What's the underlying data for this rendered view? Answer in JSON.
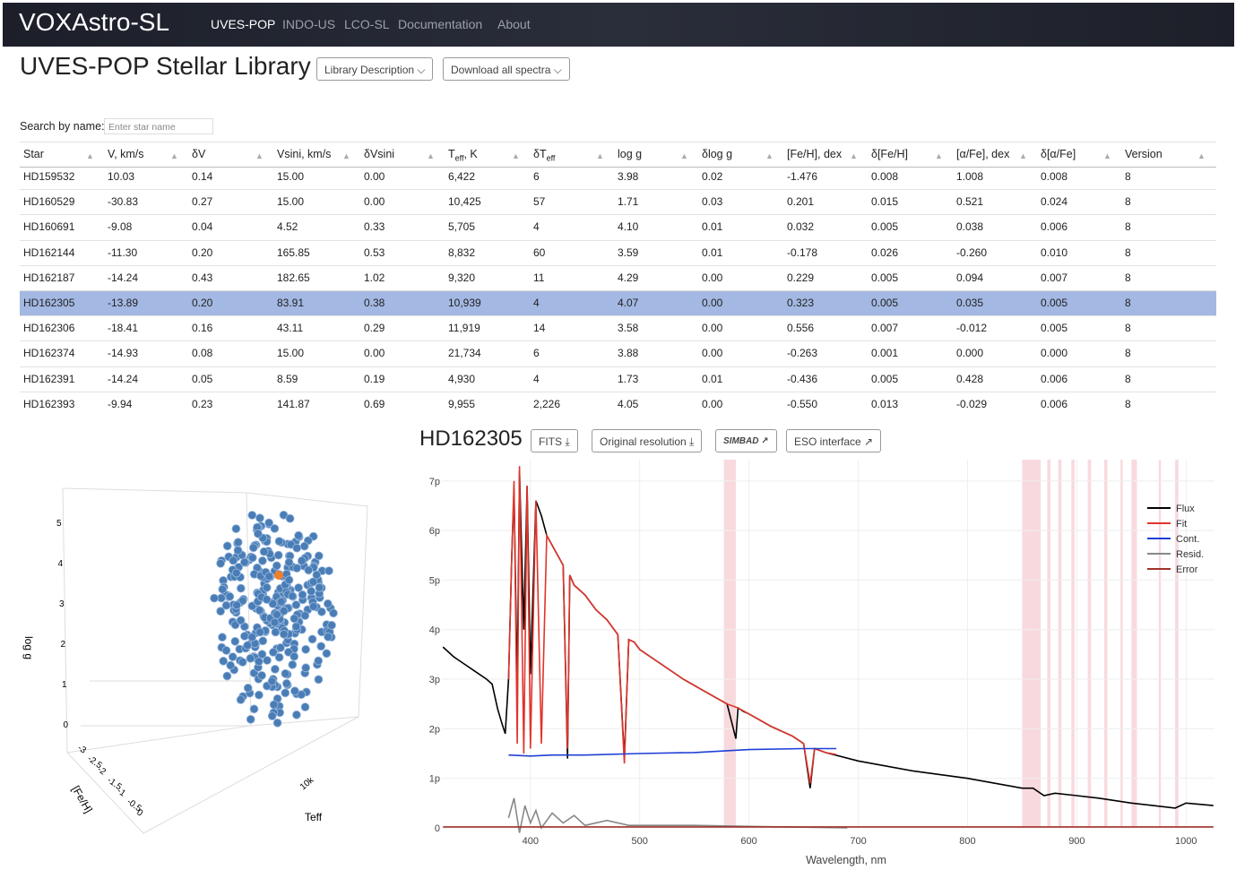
{
  "navbar": {
    "brand": "VOXAstro-SL",
    "links": [
      "UVES-POP",
      "INDO-US",
      "LCO-SL",
      "Documentation",
      "About"
    ]
  },
  "header": {
    "title": "UVES-POP Stellar Library",
    "buttons": [
      "Library Description",
      "Download all spectra"
    ]
  },
  "search": {
    "label": "Search by name:",
    "placeholder": "Enter star name"
  },
  "table": {
    "columns": [
      {
        "text": "Star"
      },
      {
        "text": "V, km/s"
      },
      {
        "text": "δV"
      },
      {
        "text": "Vsini, km/s"
      },
      {
        "text": "δVsini"
      },
      {
        "text": "T",
        "sub": "eff",
        "after": ", K"
      },
      {
        "text": "δT",
        "sub": "eff"
      },
      {
        "text": "log g"
      },
      {
        "text": "δlog g"
      },
      {
        "text": "[Fe/H], dex"
      },
      {
        "text": "δ[Fe/H]"
      },
      {
        "text": "[α/Fe], dex"
      },
      {
        "text": "δ[α/Fe]"
      },
      {
        "text": "Version"
      }
    ],
    "rows": [
      [
        "HD159532",
        "10.03",
        "0.14",
        "15.00",
        "0.00",
        "6,422",
        "6",
        "3.98",
        "0.02",
        "-1.476",
        "0.008",
        "1.008",
        "0.008",
        "8"
      ],
      [
        "HD160529",
        "-30.83",
        "0.27",
        "15.00",
        "0.00",
        "10,425",
        "57",
        "1.71",
        "0.03",
        "0.201",
        "0.015",
        "0.521",
        "0.024",
        "8"
      ],
      [
        "HD160691",
        "-9.08",
        "0.04",
        "4.52",
        "0.33",
        "5,705",
        "4",
        "4.10",
        "0.01",
        "0.032",
        "0.005",
        "0.038",
        "0.006",
        "8"
      ],
      [
        "HD162144",
        "-11.30",
        "0.20",
        "165.85",
        "0.53",
        "8,832",
        "60",
        "3.59",
        "0.01",
        "-0.178",
        "0.026",
        "-0.260",
        "0.010",
        "8"
      ],
      [
        "HD162187",
        "-14.24",
        "0.43",
        "182.65",
        "1.02",
        "9,320",
        "11",
        "4.29",
        "0.00",
        "0.229",
        "0.005",
        "0.094",
        "0.007",
        "8"
      ],
      [
        "HD162305",
        "-13.89",
        "0.20",
        "83.91",
        "0.38",
        "10,939",
        "4",
        "4.07",
        "0.00",
        "0.323",
        "0.005",
        "0.035",
        "0.005",
        "8"
      ],
      [
        "HD162306",
        "-18.41",
        "0.16",
        "43.11",
        "0.29",
        "11,919",
        "14",
        "3.58",
        "0.00",
        "0.556",
        "0.007",
        "-0.012",
        "0.005",
        "8"
      ],
      [
        "HD162374",
        "-14.93",
        "0.08",
        "15.00",
        "0.00",
        "21,734",
        "6",
        "3.88",
        "0.00",
        "-0.263",
        "0.001",
        "0.000",
        "0.000",
        "8"
      ],
      [
        "HD162391",
        "-14.24",
        "0.05",
        "8.59",
        "0.19",
        "4,930",
        "4",
        "1.73",
        "0.01",
        "-0.436",
        "0.005",
        "0.428",
        "0.006",
        "8"
      ],
      [
        "HD162393",
        "-9.94",
        "0.23",
        "141.87",
        "0.69",
        "9,955",
        "2,226",
        "4.05",
        "0.00",
        "-0.550",
        "0.013",
        "-0.029",
        "0.006",
        "8"
      ]
    ],
    "selected_row": 5
  },
  "star": {
    "name": "HD162305",
    "buttons": [
      "FITS",
      "Original resolution",
      "SIMBAD",
      "ESO interface"
    ]
  },
  "scatter3d": {
    "axis_labels": [
      "log g",
      "[Fe/H]",
      "Teff"
    ],
    "logg_ticks": [
      "0",
      "1",
      "2",
      "3",
      "4",
      "5"
    ],
    "feh_ticks": [
      "-3",
      "-2.5",
      "-2",
      "-1.5",
      "-1",
      "-0.5",
      "0"
    ],
    "teff_ticks": [
      "10k"
    ]
  },
  "chart_data": {
    "type": "line",
    "x_label": "Wavelength, nm",
    "xlim": [
      319,
      1026
    ],
    "ylim": [
      0,
      7.43
    ],
    "xticks": [
      400,
      500,
      600,
      700,
      800,
      900,
      1000
    ],
    "yticks": [
      0,
      {
        "value": 1,
        "label": "1p"
      },
      {
        "value": 2,
        "label": "2p"
      },
      {
        "value": 3,
        "label": "3p"
      },
      {
        "value": 4,
        "label": "4p"
      },
      {
        "value": 5,
        "label": "5p"
      },
      {
        "value": 6,
        "label": "6p"
      },
      {
        "value": 7,
        "label": "7p"
      }
    ],
    "grid": true,
    "legend": "top-right",
    "masked_regions": [
      [
        577,
        588
      ],
      [
        850,
        867
      ],
      [
        873,
        876
      ],
      [
        883,
        886
      ],
      [
        895,
        898
      ],
      [
        910,
        913
      ],
      [
        925,
        928
      ],
      [
        940,
        942
      ],
      [
        950,
        955
      ],
      [
        975,
        977
      ],
      [
        990,
        993
      ]
    ],
    "series": [
      {
        "name": "Flux",
        "color": "#000000",
        "x": [
          320,
          330,
          340,
          350,
          360,
          365,
          370,
          374,
          377,
          380,
          383,
          385,
          388,
          390,
          394,
          397,
          400,
          405,
          410,
          415,
          420,
          430,
          434,
          436,
          440,
          450,
          460,
          470,
          480,
          486,
          490,
          495,
          500,
          520,
          540,
          560,
          580,
          588,
          590,
          595,
          600,
          620,
          640,
          650,
          656,
          660,
          670,
          700,
          750,
          800,
          850,
          860,
          870,
          880,
          900,
          920,
          950,
          970,
          990,
          1000,
          1025
        ],
        "values": [
          3.65,
          3.45,
          3.3,
          3.15,
          3.0,
          2.9,
          2.4,
          2.1,
          1.9,
          3.0,
          5.5,
          6.8,
          2.8,
          7.2,
          4.0,
          6.9,
          3.1,
          6.6,
          6.3,
          5.9,
          5.7,
          5.3,
          1.4,
          5.1,
          4.9,
          4.7,
          4.4,
          4.2,
          3.9,
          1.4,
          3.8,
          3.75,
          3.6,
          3.3,
          3.0,
          2.75,
          2.5,
          1.8,
          2.42,
          2.35,
          2.3,
          2.05,
          1.85,
          1.7,
          0.8,
          1.6,
          1.52,
          1.35,
          1.15,
          1.0,
          0.8,
          0.8,
          0.65,
          0.7,
          0.65,
          0.6,
          0.5,
          0.45,
          0.4,
          0.5,
          0.45
        ]
      },
      {
        "name": "Fit",
        "color": "#e0342a",
        "x": [
          380,
          383,
          385,
          388,
          390,
          394,
          397,
          400,
          405,
          410,
          415,
          420,
          430,
          434,
          436,
          440,
          450,
          460,
          470,
          480,
          486,
          490,
          495,
          500,
          520,
          540,
          560,
          580,
          590,
          600,
          620,
          640,
          650,
          656,
          660,
          670,
          680
        ],
        "values": [
          3.0,
          5.5,
          7.0,
          1.7,
          7.3,
          1.5,
          6.9,
          1.6,
          6.6,
          1.7,
          5.9,
          5.7,
          5.3,
          1.6,
          5.1,
          4.9,
          4.7,
          4.4,
          4.2,
          3.9,
          1.3,
          3.8,
          3.75,
          3.6,
          3.3,
          3.0,
          2.75,
          2.5,
          2.42,
          2.3,
          2.05,
          1.85,
          1.7,
          0.9,
          1.6,
          1.52,
          1.48
        ]
      },
      {
        "name": "Cont.",
        "color": "#1f3fd6",
        "x": [
          380,
          400,
          420,
          450,
          500,
          550,
          600,
          650,
          680
        ],
        "values": [
          1.47,
          1.45,
          1.47,
          1.47,
          1.5,
          1.52,
          1.58,
          1.6,
          1.6
        ]
      },
      {
        "name": "Resid.",
        "color": "#888888",
        "x": [
          380,
          385,
          390,
          395,
          400,
          405,
          410,
          420,
          430,
          440,
          450,
          470,
          490,
          550,
          600,
          690
        ],
        "values": [
          0.2,
          0.6,
          -0.1,
          0.45,
          0.1,
          0.35,
          0.0,
          0.3,
          0.1,
          0.25,
          0.05,
          0.15,
          0.05,
          0.05,
          0.03,
          0.0
        ]
      },
      {
        "name": "Error",
        "color": "#a0302a",
        "x": [
          320,
          1025
        ],
        "values": [
          0.02,
          0.02
        ]
      }
    ]
  }
}
